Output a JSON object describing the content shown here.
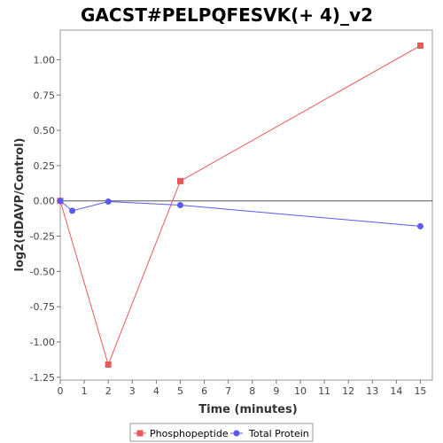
{
  "chart_data": {
    "type": "line",
    "title": "GACST#PELPQFESVK(+ 4)_v2",
    "xlabel": "Time (minutes)",
    "ylabel": "log2(dDAVP/Control)",
    "xlim": [
      0,
      15.5
    ],
    "ylim": [
      -1.27,
      1.21
    ],
    "xticks": [
      0,
      1,
      2,
      3,
      4,
      5,
      6,
      7,
      8,
      9,
      10,
      11,
      12,
      13,
      14,
      15
    ],
    "yticks": [
      -1.25,
      -1.0,
      -0.75,
      -0.5,
      -0.25,
      0.0,
      0.25,
      0.5,
      0.75,
      1.0
    ],
    "ytick_labels": [
      "-1.25",
      "-1.00",
      "-0.75",
      "-0.50",
      "-0.25",
      "0.00",
      "0.25",
      "0.50",
      "0.75",
      "1.00"
    ],
    "zero_line": true,
    "grid": false,
    "legend_position": "bottom",
    "series": [
      {
        "name": "Phosphopeptide",
        "color": "#e8585a",
        "marker": "square",
        "x": [
          0,
          2,
          5,
          15
        ],
        "y": [
          0.0,
          -1.16,
          0.14,
          1.1
        ]
      },
      {
        "name": "Total Protein",
        "color": "#5a5af0",
        "marker": "circle",
        "x": [
          0,
          0.5,
          2,
          5,
          15
        ],
        "y": [
          0.0,
          -0.07,
          -0.005,
          -0.03,
          -0.18
        ]
      }
    ]
  }
}
